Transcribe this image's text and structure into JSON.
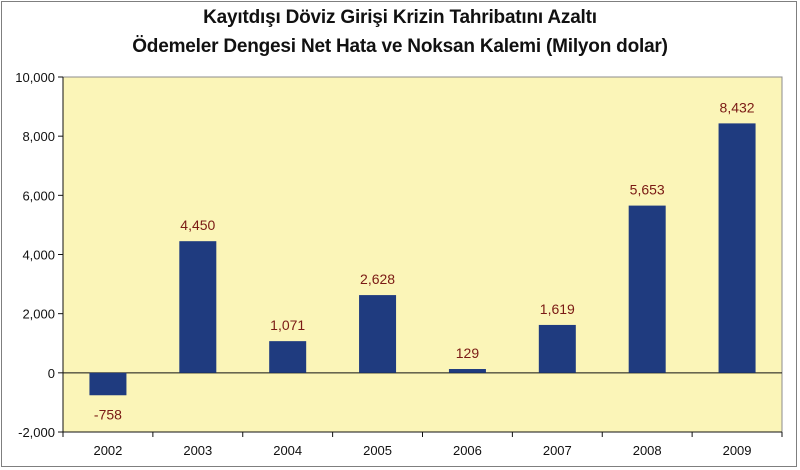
{
  "chart_data": {
    "type": "bar",
    "title": "Kayıtdışı Döviz Girişi Krizin Tahribatını Azaltı",
    "subtitle": "Ödemeler Dengesi Net Hata ve Noksan Kalemi (Milyon dolar)",
    "categories": [
      "2002",
      "2003",
      "2004",
      "2005",
      "2006",
      "2007",
      "2008",
      "2009"
    ],
    "values": [
      -758,
      4450,
      1071,
      2628,
      129,
      1619,
      5653,
      8432
    ],
    "value_labels": [
      "-758",
      "4,450",
      "1,071",
      "2,628",
      "129",
      "1,619",
      "5,653",
      "8,432"
    ],
    "ylim": [
      -2000,
      10000
    ],
    "yticks": [
      10000,
      8000,
      6000,
      4000,
      2000,
      0,
      -2000
    ],
    "ytick_labels": [
      "10,000",
      "8,000",
      "6,000",
      "4,000",
      "2,000",
      "0",
      "-2,000"
    ],
    "xlabel": "",
    "ylabel": "",
    "grid": false,
    "legend": "none",
    "colors": {
      "bar": "#1f3b7f",
      "plot_bg": "#fbf5b8",
      "label": "#7a1a14",
      "axis": "#111111"
    }
  }
}
